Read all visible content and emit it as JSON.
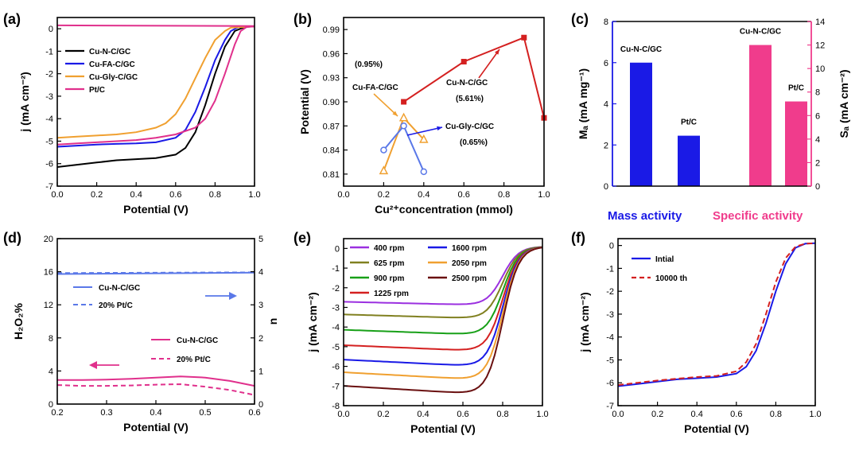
{
  "colors": {
    "black": "#000000",
    "blue": "#1a1ae6",
    "orange": "#f0a030",
    "magenta": "#e0308c",
    "red": "#d42020",
    "hotpink": "#f03c8c",
    "steelblue": "#5a78e8",
    "purple": "#9b30e0",
    "olive": "#808020",
    "green": "#18a018",
    "darkred": "#6a1010"
  },
  "panels": {
    "a": {
      "label": "(a)"
    },
    "b": {
      "label": "(b)"
    },
    "c": {
      "label": "(c)",
      "bottom_left": "Mass activity",
      "bottom_right": "Specific activity"
    },
    "d": {
      "label": "(d)"
    },
    "e": {
      "label": "(e)"
    },
    "f": {
      "label": "(f)"
    }
  },
  "chart_data": [
    {
      "id": "a",
      "type": "line",
      "xlabel": "Potential (V)",
      "ylabel": "j (mA cm⁻²)",
      "xlim": [
        0.0,
        1.0
      ],
      "ylim": [
        -7,
        0.5
      ],
      "xticks": [
        "0.0",
        "0.2",
        "0.4",
        "0.6",
        "0.8",
        "1.0"
      ],
      "yticks": [
        "0",
        "-1",
        "-2",
        "-3",
        "-4",
        "-5",
        "-6",
        "-7"
      ],
      "legend_position": "top-left",
      "series": [
        {
          "name": "Cu-N-C/GC",
          "color": "#000000",
          "x": [
            0,
            0.1,
            0.2,
            0.3,
            0.4,
            0.5,
            0.6,
            0.65,
            0.7,
            0.75,
            0.8,
            0.85,
            0.9,
            0.95,
            1.0
          ],
          "y": [
            -6.15,
            -6.05,
            -5.95,
            -5.85,
            -5.8,
            -5.75,
            -5.6,
            -5.3,
            -4.6,
            -3.4,
            -2.0,
            -0.8,
            -0.1,
            0.08,
            0.1
          ]
        },
        {
          "name": "Cu-FA-C/GC",
          "color": "#1a1ae6",
          "x": [
            0,
            0.1,
            0.2,
            0.3,
            0.4,
            0.5,
            0.6,
            0.65,
            0.7,
            0.75,
            0.8,
            0.85,
            0.88,
            0.92,
            1.0
          ],
          "y": [
            -5.25,
            -5.2,
            -5.15,
            -5.12,
            -5.1,
            -5.05,
            -4.85,
            -4.5,
            -3.7,
            -2.6,
            -1.4,
            -0.5,
            -0.1,
            0.08,
            0.1
          ]
        },
        {
          "name": "Cu-Gly-C/GC",
          "color": "#f0a030",
          "x": [
            0,
            0.1,
            0.2,
            0.3,
            0.4,
            0.5,
            0.55,
            0.6,
            0.65,
            0.7,
            0.75,
            0.8,
            0.85,
            0.88,
            1.0
          ],
          "y": [
            -4.85,
            -4.8,
            -4.75,
            -4.7,
            -4.6,
            -4.4,
            -4.2,
            -3.8,
            -3.1,
            -2.2,
            -1.3,
            -0.5,
            -0.1,
            0.05,
            0.1
          ]
        },
        {
          "name": "Pt/C",
          "color": "#e0308c",
          "x": [
            0,
            0.1,
            0.2,
            0.3,
            0.4,
            0.5,
            0.6,
            0.7,
            0.75,
            0.8,
            0.85,
            0.9,
            0.93,
            0.96,
            1.0
          ],
          "y": [
            -5.15,
            -5.1,
            -5.05,
            -5.0,
            -4.95,
            -4.85,
            -4.7,
            -4.4,
            -4.0,
            -3.2,
            -2.0,
            -0.7,
            -0.1,
            0.08,
            0.1
          ]
        },
        {
          "name": "",
          "color": "#e0308c",
          "x": [
            0,
            1.0
          ],
          "y": [
            0.15,
            0.12
          ]
        }
      ]
    },
    {
      "id": "b",
      "type": "scatter",
      "xlabel": "Cu²⁺concentration  (mmol)",
      "ylabel": "Potential (V)",
      "xlim": [
        0.0,
        1.0
      ],
      "ylim": [
        0.795,
        1.005
      ],
      "xticks": [
        "0.0",
        "0.2",
        "0.4",
        "0.6",
        "0.8",
        "1.0"
      ],
      "yticks": [
        "0.81",
        "0.84",
        "0.87",
        "0.90",
        "0.93",
        "0.96",
        "0.99"
      ],
      "series": [
        {
          "name": "Cu-N-C/GC",
          "color": "#d42020",
          "marker": "square",
          "x": [
            0.3,
            0.6,
            0.9,
            1.0
          ],
          "y": [
            0.9,
            0.95,
            0.98,
            0.88
          ]
        },
        {
          "name": "Cu-FA-C/GC",
          "color": "#f0a030",
          "marker": "triangle",
          "x": [
            0.2,
            0.3,
            0.4
          ],
          "y": [
            0.814,
            0.88,
            0.853
          ]
        },
        {
          "name": "Cu-Gly-C/GC",
          "color": "#5a78e8",
          "marker": "circle",
          "x": [
            0.2,
            0.3,
            0.4
          ],
          "y": [
            0.84,
            0.87,
            0.813
          ]
        }
      ],
      "annotations": [
        {
          "text": "(0.95%)",
          "color": "#f0a030"
        },
        {
          "text": "Cu-FA-C/GC",
          "color": "#f0a030"
        },
        {
          "text": "Cu-N-C/GC",
          "color": "#d42020"
        },
        {
          "text": "(5.61%)",
          "color": "#d42020"
        },
        {
          "text": "Cu-Gly-C/GC",
          "color": "#1a1ae6"
        },
        {
          "text": "(0.65%)",
          "color": "#1a1ae6"
        }
      ]
    },
    {
      "id": "c",
      "type": "bar",
      "ylabel_left": "Mₐ (mA mg⁻¹)",
      "ylabel_right": "Sₐ (mA cm⁻²)",
      "ylim_left": [
        0,
        8
      ],
      "ylim_right": [
        0,
        14
      ],
      "yticks_left": [
        "0",
        "2",
        "4",
        "6",
        "8"
      ],
      "yticks_right": [
        "0",
        "2",
        "4",
        "6",
        "8",
        "10",
        "12",
        "14"
      ],
      "groups": [
        {
          "name": "Mass activity",
          "axis": "left",
          "color": "#1a1ae6",
          "categories": [
            "Cu-N-C/GC",
            "Pt/C"
          ],
          "values": [
            6.0,
            2.45
          ]
        },
        {
          "name": "Specific activity",
          "axis": "right",
          "color": "#f03c8c",
          "categories": [
            "Cu-N-C/GC",
            "Pt/C"
          ],
          "values": [
            12.0,
            7.2
          ]
        }
      ]
    },
    {
      "id": "d",
      "type": "line",
      "xlabel": "Potential (V)",
      "ylabel_left": "H₂O₂%",
      "ylabel_right": "n",
      "xlim": [
        0.2,
        0.6
      ],
      "ylim_left": [
        0,
        20
      ],
      "ylim_right": [
        0,
        5
      ],
      "xticks": [
        "0.2",
        "0.3",
        "0.4",
        "0.5",
        "0.6"
      ],
      "yticks_left": [
        "0",
        "4",
        "8",
        "12",
        "16",
        "20"
      ],
      "yticks_right": [
        "0",
        "1",
        "2",
        "3",
        "4",
        "5"
      ],
      "series": [
        {
          "name": "Cu-N-C/GC",
          "axis": "right",
          "color": "#5a78e8",
          "dash": false,
          "x": [
            0.2,
            0.6
          ],
          "y": [
            3.93,
            3.97
          ]
        },
        {
          "name": "20% Pt/C",
          "axis": "right",
          "color": "#5a78e8",
          "dash": true,
          "x": [
            0.2,
            0.6
          ],
          "y": [
            3.96,
            3.98
          ]
        },
        {
          "name": "Cu-N-C/GC",
          "axis": "left",
          "color": "#e0308c",
          "dash": false,
          "x": [
            0.2,
            0.25,
            0.3,
            0.35,
            0.4,
            0.45,
            0.5,
            0.55,
            0.6
          ],
          "y": [
            2.9,
            2.9,
            2.95,
            3.05,
            3.2,
            3.35,
            3.2,
            2.8,
            2.2
          ]
        },
        {
          "name": "20% Pt/C",
          "axis": "left",
          "color": "#e0308c",
          "dash": true,
          "x": [
            0.2,
            0.25,
            0.3,
            0.35,
            0.4,
            0.45,
            0.5,
            0.55,
            0.6
          ],
          "y": [
            2.3,
            2.2,
            2.2,
            2.25,
            2.35,
            2.4,
            2.1,
            1.7,
            1.1
          ]
        }
      ]
    },
    {
      "id": "e",
      "type": "line",
      "xlabel": "Potential (V)",
      "ylabel": "j (mA cm⁻²)",
      "xlim": [
        0.0,
        1.0
      ],
      "ylim": [
        -8,
        0.5
      ],
      "xticks": [
        "0.0",
        "0.2",
        "0.4",
        "0.6",
        "0.8",
        "1.0"
      ],
      "yticks": [
        "0",
        "-1",
        "-2",
        "-3",
        "-4",
        "-5",
        "-6",
        "-7",
        "-8"
      ],
      "series": [
        {
          "name": "400 rpm",
          "color": "#9b30e0",
          "limit": -2.95
        },
        {
          "name": "625 rpm",
          "color": "#808020",
          "limit": -3.65
        },
        {
          "name": "900 rpm",
          "color": "#18a018",
          "limit": -4.5
        },
        {
          "name": "1225 rpm",
          "color": "#d42020",
          "limit": -5.35
        },
        {
          "name": "1600 rpm",
          "color": "#1a1ae6",
          "limit": -6.15
        },
        {
          "name": "2050 rpm",
          "color": "#f0a030",
          "limit": -6.85
        },
        {
          "name": "2500 rpm",
          "color": "#6a1010",
          "limit": -7.6
        }
      ]
    },
    {
      "id": "f",
      "type": "line",
      "xlabel": "Potential (V)",
      "ylabel": "j (mA cm⁻²)",
      "xlim": [
        0.0,
        1.0
      ],
      "ylim": [
        -7,
        0.3
      ],
      "xticks": [
        "0.0",
        "0.2",
        "0.4",
        "0.6",
        "0.8",
        "1.0"
      ],
      "yticks": [
        "0",
        "-1",
        "-2",
        "-3",
        "-4",
        "-5",
        "-6",
        "-7"
      ],
      "series": [
        {
          "name": "Intial",
          "color": "#1a1ae6",
          "dash": false,
          "x": [
            0,
            0.1,
            0.2,
            0.3,
            0.4,
            0.5,
            0.6,
            0.65,
            0.7,
            0.75,
            0.8,
            0.85,
            0.9,
            0.95,
            1.0
          ],
          "y": [
            -6.15,
            -6.05,
            -5.95,
            -5.85,
            -5.8,
            -5.75,
            -5.6,
            -5.3,
            -4.6,
            -3.4,
            -2.0,
            -0.8,
            -0.1,
            0.08,
            0.1
          ]
        },
        {
          "name": "10000 th",
          "color": "#d42020",
          "dash": true,
          "x": [
            0,
            0.1,
            0.2,
            0.3,
            0.4,
            0.5,
            0.6,
            0.65,
            0.7,
            0.75,
            0.8,
            0.85,
            0.9,
            0.95,
            1.0
          ],
          "y": [
            -6.1,
            -6.0,
            -5.9,
            -5.82,
            -5.75,
            -5.7,
            -5.5,
            -5.1,
            -4.3,
            -3.0,
            -1.6,
            -0.55,
            -0.05,
            0.08,
            0.1
          ]
        }
      ]
    }
  ]
}
